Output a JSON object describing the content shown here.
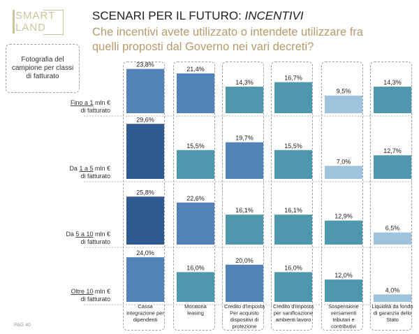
{
  "logo": {
    "line1": "SMART",
    "line2": "LAND"
  },
  "header": {
    "title_plain": "SCENARI PER IL FUTURO: ",
    "title_italic": "INCENTIVI",
    "subtitle": "Che incentivi avete utilizzato o intendete utilizzare fra quelli proposti dal Governo nei vari decreti?"
  },
  "legend_box": "Fotografia del campione per classi di fatturato",
  "page_label": "PAG 40",
  "colors": {
    "dark": "#2f5a8f",
    "mid": "#5283b8",
    "teal": "#4f97ad",
    "light": "#9fc3dc"
  },
  "chart_data": {
    "type": "bar",
    "unit": "%",
    "categories": [
      [
        "Cassa",
        "integrazione per",
        "dipendenti"
      ],
      [
        "Moratoria",
        "leasing"
      ],
      [
        "Credito d'imposta",
        "Per acquisto",
        "dispositivi di",
        "protezione"
      ],
      [
        "Credito d'imposta",
        "per sanificazione",
        "ambienti lavoro"
      ],
      [
        "Sospensione",
        "versamenti",
        "tributari e",
        "contributivi"
      ],
      [
        "Liquidità da fondo",
        "di garanzia dello",
        "Stato"
      ]
    ],
    "groups": [
      {
        "label_pre": "",
        "label_ul": "Fino a 1",
        "label_post": " mln €",
        "label2": "di fatturato",
        "values": [
          23.8,
          21.4,
          14.3,
          16.7,
          9.5,
          14.3
        ],
        "labels": [
          "23,8%",
          "21,4%",
          "14,3%",
          "16,7%",
          "9,5%",
          "14,3%"
        ]
      },
      {
        "label_pre": "Da ",
        "label_ul": "1 a 5",
        "label_post": " mln €",
        "label2": "di fatturato",
        "values": [
          29.6,
          15.5,
          19.7,
          15.5,
          7.0,
          12.7
        ],
        "labels": [
          "29,6%",
          "15,5%",
          "19,7%",
          "15,5%",
          "7,0%",
          "12,7%"
        ]
      },
      {
        "label_pre": "Da ",
        "label_ul": "5 a 10",
        "label_post": " mln €",
        "label2": "di fatturato",
        "values": [
          25.8,
          22.6,
          16.1,
          16.1,
          12.9,
          6.5
        ],
        "labels": [
          "25,8%",
          "22,6%",
          "16,1%",
          "16,1%",
          "12,9%",
          "6,5%"
        ]
      },
      {
        "label_pre": "",
        "label_ul": "Oltre 10",
        "label_post": " mln €",
        "label2": "di fatturato",
        "values": [
          24.0,
          16.0,
          20.0,
          16.0,
          12.0,
          4.0
        ],
        "labels": [
          "24,0%",
          "16,0%",
          "20,0%",
          "16,0%",
          "12,0%",
          "4,0%"
        ]
      }
    ],
    "ylim": [
      0,
      30
    ]
  }
}
